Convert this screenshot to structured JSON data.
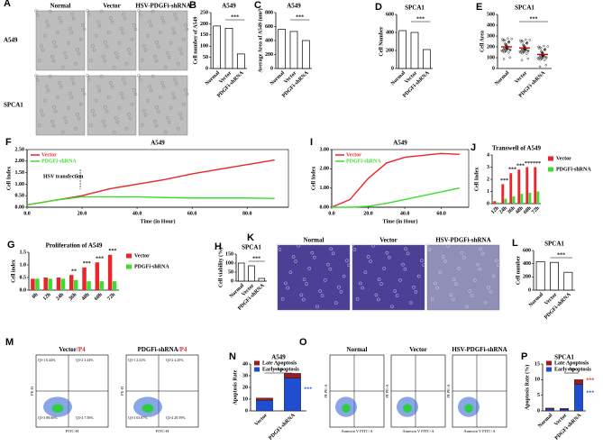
{
  "chart_data": [
    {
      "panel": "B",
      "type": "bar",
      "title": "A549",
      "y_label": "Cell number of A549",
      "categories": [
        "Normal",
        "Vector",
        "PDGFi-shRNA"
      ],
      "values": [
        190,
        180,
        65
      ],
      "ylim": [
        0,
        250
      ],
      "yticks": [
        0,
        50,
        100,
        150,
        200,
        250
      ],
      "annotation": "***"
    },
    {
      "panel": "C",
      "type": "bar",
      "title": "A549",
      "y_label": "Average Area of A549 (um²)",
      "categories": [
        "Normal",
        "Vector",
        "PDGFi-shRNA"
      ],
      "values": [
        560,
        530,
        400
      ],
      "ylim": [
        0,
        800
      ],
      "yticks": [
        0,
        200,
        400,
        600,
        800
      ],
      "annotation": "***"
    },
    {
      "panel": "D",
      "type": "bar",
      "title": "SPCA1",
      "y_label": "Cell Number",
      "categories": [
        "Normal",
        "Vector",
        "PDGFi-shRNA"
      ],
      "values": [
        420,
        400,
        210
      ],
      "ylim": [
        0,
        600
      ],
      "yticks": [
        0,
        200,
        400,
        600
      ],
      "annotation": "***"
    },
    {
      "panel": "E",
      "type": "dot",
      "title": "SPCA1",
      "y_label": "Cell Area",
      "categories": [
        "Normal",
        "Vector",
        "PDGFi-shRNA"
      ],
      "values": [
        200,
        190,
        130
      ],
      "ylim": [
        0,
        500
      ],
      "yticks": [
        0,
        100,
        200,
        300,
        400,
        500
      ],
      "annotation": "***"
    },
    {
      "panel": "F",
      "type": "line",
      "title": "A549",
      "x_label": "Time (in Hour)",
      "y_label": "Cell Index",
      "x": [
        0,
        10,
        20,
        30,
        40,
        50,
        60,
        70,
        80,
        90
      ],
      "series": [
        {
          "name": "Vector",
          "color": "#e8262b",
          "values": [
            0.1,
            0.3,
            0.5,
            0.8,
            1.0,
            1.2,
            1.45,
            1.65,
            1.85,
            2.05
          ]
        },
        {
          "name": "PDGFi-shRNA",
          "color": "#3ddc2f",
          "values": [
            0.1,
            0.3,
            0.45,
            0.45,
            0.45,
            0.42,
            0.4,
            0.4,
            0.4,
            0.38
          ]
        }
      ],
      "xlim": [
        0,
        95
      ],
      "xticks": [
        {
          "value": 0,
          "label": "0.0"
        },
        {
          "value": 20,
          "label": "20.0"
        },
        {
          "value": 40,
          "label": "40.0"
        },
        {
          "value": 60,
          "label": "60.0"
        },
        {
          "value": 80,
          "label": "80.0"
        }
      ],
      "ylim": [
        0,
        2.5
      ],
      "yticks": [
        {
          "value": 0,
          "label": "0.00"
        },
        {
          "value": 0.5,
          "label": "0.50"
        },
        {
          "value": 1,
          "label": "1.00"
        },
        {
          "value": 1.5,
          "label": "1.50"
        },
        {
          "value": 2,
          "label": "2.00"
        },
        {
          "value": 2.5,
          "label": "2.50"
        }
      ],
      "annotation": "HSV transfection"
    },
    {
      "panel": "I",
      "type": "line",
      "title": "A549",
      "x_label": "Time (in Hour)",
      "y_label": "Cell Index",
      "x": [
        0,
        10,
        20,
        30,
        40,
        50,
        60,
        70
      ],
      "series": [
        {
          "name": "Vector",
          "color": "#e8262b",
          "values": [
            0,
            0.4,
            1.5,
            2.3,
            2.6,
            2.7,
            2.8,
            2.75
          ]
        },
        {
          "name": "PDGFi-shRNA",
          "color": "#3ddc2f",
          "values": [
            0,
            0,
            0.05,
            0.2,
            0.4,
            0.6,
            0.8,
            1.0
          ]
        }
      ],
      "xlim": [
        0,
        75
      ],
      "xticks": [
        {
          "value": 0,
          "label": "0.0"
        },
        {
          "value": 20,
          "label": "20.0"
        },
        {
          "value": 40,
          "label": "40.0"
        },
        {
          "value": 60,
          "label": "60.0"
        }
      ],
      "ylim": [
        0,
        3
      ],
      "yticks": [
        {
          "value": 0,
          "label": "0.00"
        },
        {
          "value": 1,
          "label": "1.00"
        },
        {
          "value": 2,
          "label": "2.00"
        },
        {
          "value": 3,
          "label": "3.00"
        }
      ]
    },
    {
      "panel": "J",
      "type": "grouped_bar",
      "title": "Transwell of A549",
      "y_label": "Cell Index",
      "categories": [
        "12h",
        "24h",
        "36h",
        "48h",
        "60h",
        "72h"
      ],
      "series": [
        {
          "name": "Vector",
          "color": "#e8262b",
          "values": [
            0.2,
            1.6,
            2.5,
            2.8,
            3.0,
            3.0
          ]
        },
        {
          "name": "PDGFi-shRNA",
          "color": "#3ddc2f",
          "values": [
            0.1,
            0.4,
            0.6,
            0.8,
            0.9,
            1.0
          ]
        }
      ],
      "ylim": [
        0,
        4
      ],
      "yticks": [
        0,
        1,
        2,
        3,
        4
      ],
      "annotations": [
        "***",
        "***",
        "***",
        "***",
        "***"
      ]
    },
    {
      "panel": "G",
      "type": "grouped_bar",
      "title": "Proliferation of A549",
      "y_label": "Cell index",
      "categories": [
        "0h",
        "12h",
        "24h",
        "36h",
        "48h",
        "60h",
        "72h"
      ],
      "series": [
        {
          "name": "Vector",
          "color": "#e8262b",
          "values": [
            0.45,
            0.5,
            0.5,
            0.6,
            0.9,
            1.1,
            1.4
          ]
        },
        {
          "name": "PDGFi-shRNA",
          "color": "#3ddc2f",
          "values": [
            0.45,
            0.45,
            0.45,
            0.4,
            0.35,
            0.35,
            0.35
          ]
        }
      ],
      "ylim": [
        0,
        1.5
      ],
      "yticks": [
        {
          "value": 0,
          "label": "0.0"
        },
        0.5,
        {
          "value": 1,
          "label": "1.0"
        },
        1.5
      ],
      "annotations": [
        "**",
        "***",
        "***",
        "***"
      ]
    },
    {
      "panel": "H",
      "type": "bar",
      "title": "SPCA1",
      "y_label": "Cell viability (%)",
      "categories": [
        "Normal",
        "Vector",
        "PDGFi-shRNA"
      ],
      "values": [
        100,
        85,
        15
      ],
      "ylim": [
        0,
        150
      ],
      "yticks": [
        0,
        50,
        100,
        150
      ],
      "annotation": "***"
    },
    {
      "panel": "L",
      "type": "bar",
      "title": "SPCA1",
      "y_label": "Cell number",
      "categories": [
        "Normal",
        "Vector",
        "PDGFi-shRNA"
      ],
      "values": [
        430,
        420,
        270
      ],
      "ylim": [
        0,
        600
      ],
      "yticks": [
        0,
        200,
        400,
        600
      ],
      "annotation": "***"
    },
    {
      "panel": "N",
      "type": "stacked_bar",
      "title": "A549",
      "y_label": "Apoptosis Rate",
      "categories": [
        "Vector",
        "PDGFi-shRNA"
      ],
      "series": [
        {
          "name": "Late Apoptosis",
          "color": "#9b1c1c",
          "values": [
            2,
            4
          ]
        },
        {
          "name": "Early Apoptosis",
          "color": "#1f4fd0",
          "values": [
            9,
            28
          ]
        }
      ],
      "ylim": [
        0,
        40
      ],
      "yticks": [
        0,
        10,
        20,
        30,
        40
      ],
      "annotations": [
        "***",
        "***"
      ]
    },
    {
      "panel": "P",
      "type": "stacked_bar",
      "title": "SPCA1",
      "y_label": "Apoptosis Rate (%)",
      "categories": [
        "Normal",
        "Vector",
        "PDGFi-shRNA"
      ],
      "series": [
        {
          "name": "Late Apoptosis",
          "color": "#9b1c1c",
          "values": [
            0.3,
            0.3,
            1.5
          ]
        },
        {
          "name": "Early Apoptosis",
          "color": "#1f4fd0",
          "values": [
            0.6,
            0.5,
            8.5
          ]
        }
      ],
      "ylim": [
        0,
        15
      ],
      "yticks": [
        0,
        5,
        10,
        15
      ],
      "annotations": [
        "***",
        "***",
        "***"
      ]
    }
  ],
  "image_panels": [
    {
      "panel": "A",
      "kind": "micrograph",
      "columns": [
        "Normal",
        "Vector",
        "HSV-PDGFi-shRNA"
      ],
      "rows": [
        "A549",
        "SPCA1"
      ]
    },
    {
      "panel": "K",
      "kind": "stain",
      "columns": [
        "Normal",
        "Vector",
        "HSV-PDGFi-shRNA"
      ]
    },
    {
      "panel": "M",
      "kind": "flow",
      "x_label": "FITC-H",
      "y_label": "PE-H",
      "plots": [
        {
          "title": "Vector",
          "suffix": "/P4",
          "quadrants": [
            "Q3-1 0.44%",
            "Q3-2 3.44%",
            "Q3-3 88.66%",
            "Q3-4 7.56%"
          ]
        },
        {
          "title": "PDGFi-shRNA",
          "suffix": "/P4",
          "quadrants": [
            "Q3-1 2.41%",
            "Q3-2 4.25%",
            "Q3-3 63.87%",
            "Q3-4 29.59%"
          ]
        }
      ]
    },
    {
      "panel": "O",
      "kind": "flow",
      "x_label": "Annexin V FITC-A",
      "y_label": "PI PE-A",
      "plots": [
        {
          "title": "Normal"
        },
        {
          "title": "Vector"
        },
        {
          "title": "HSV-PDGFi-shRNA"
        }
      ]
    }
  ]
}
